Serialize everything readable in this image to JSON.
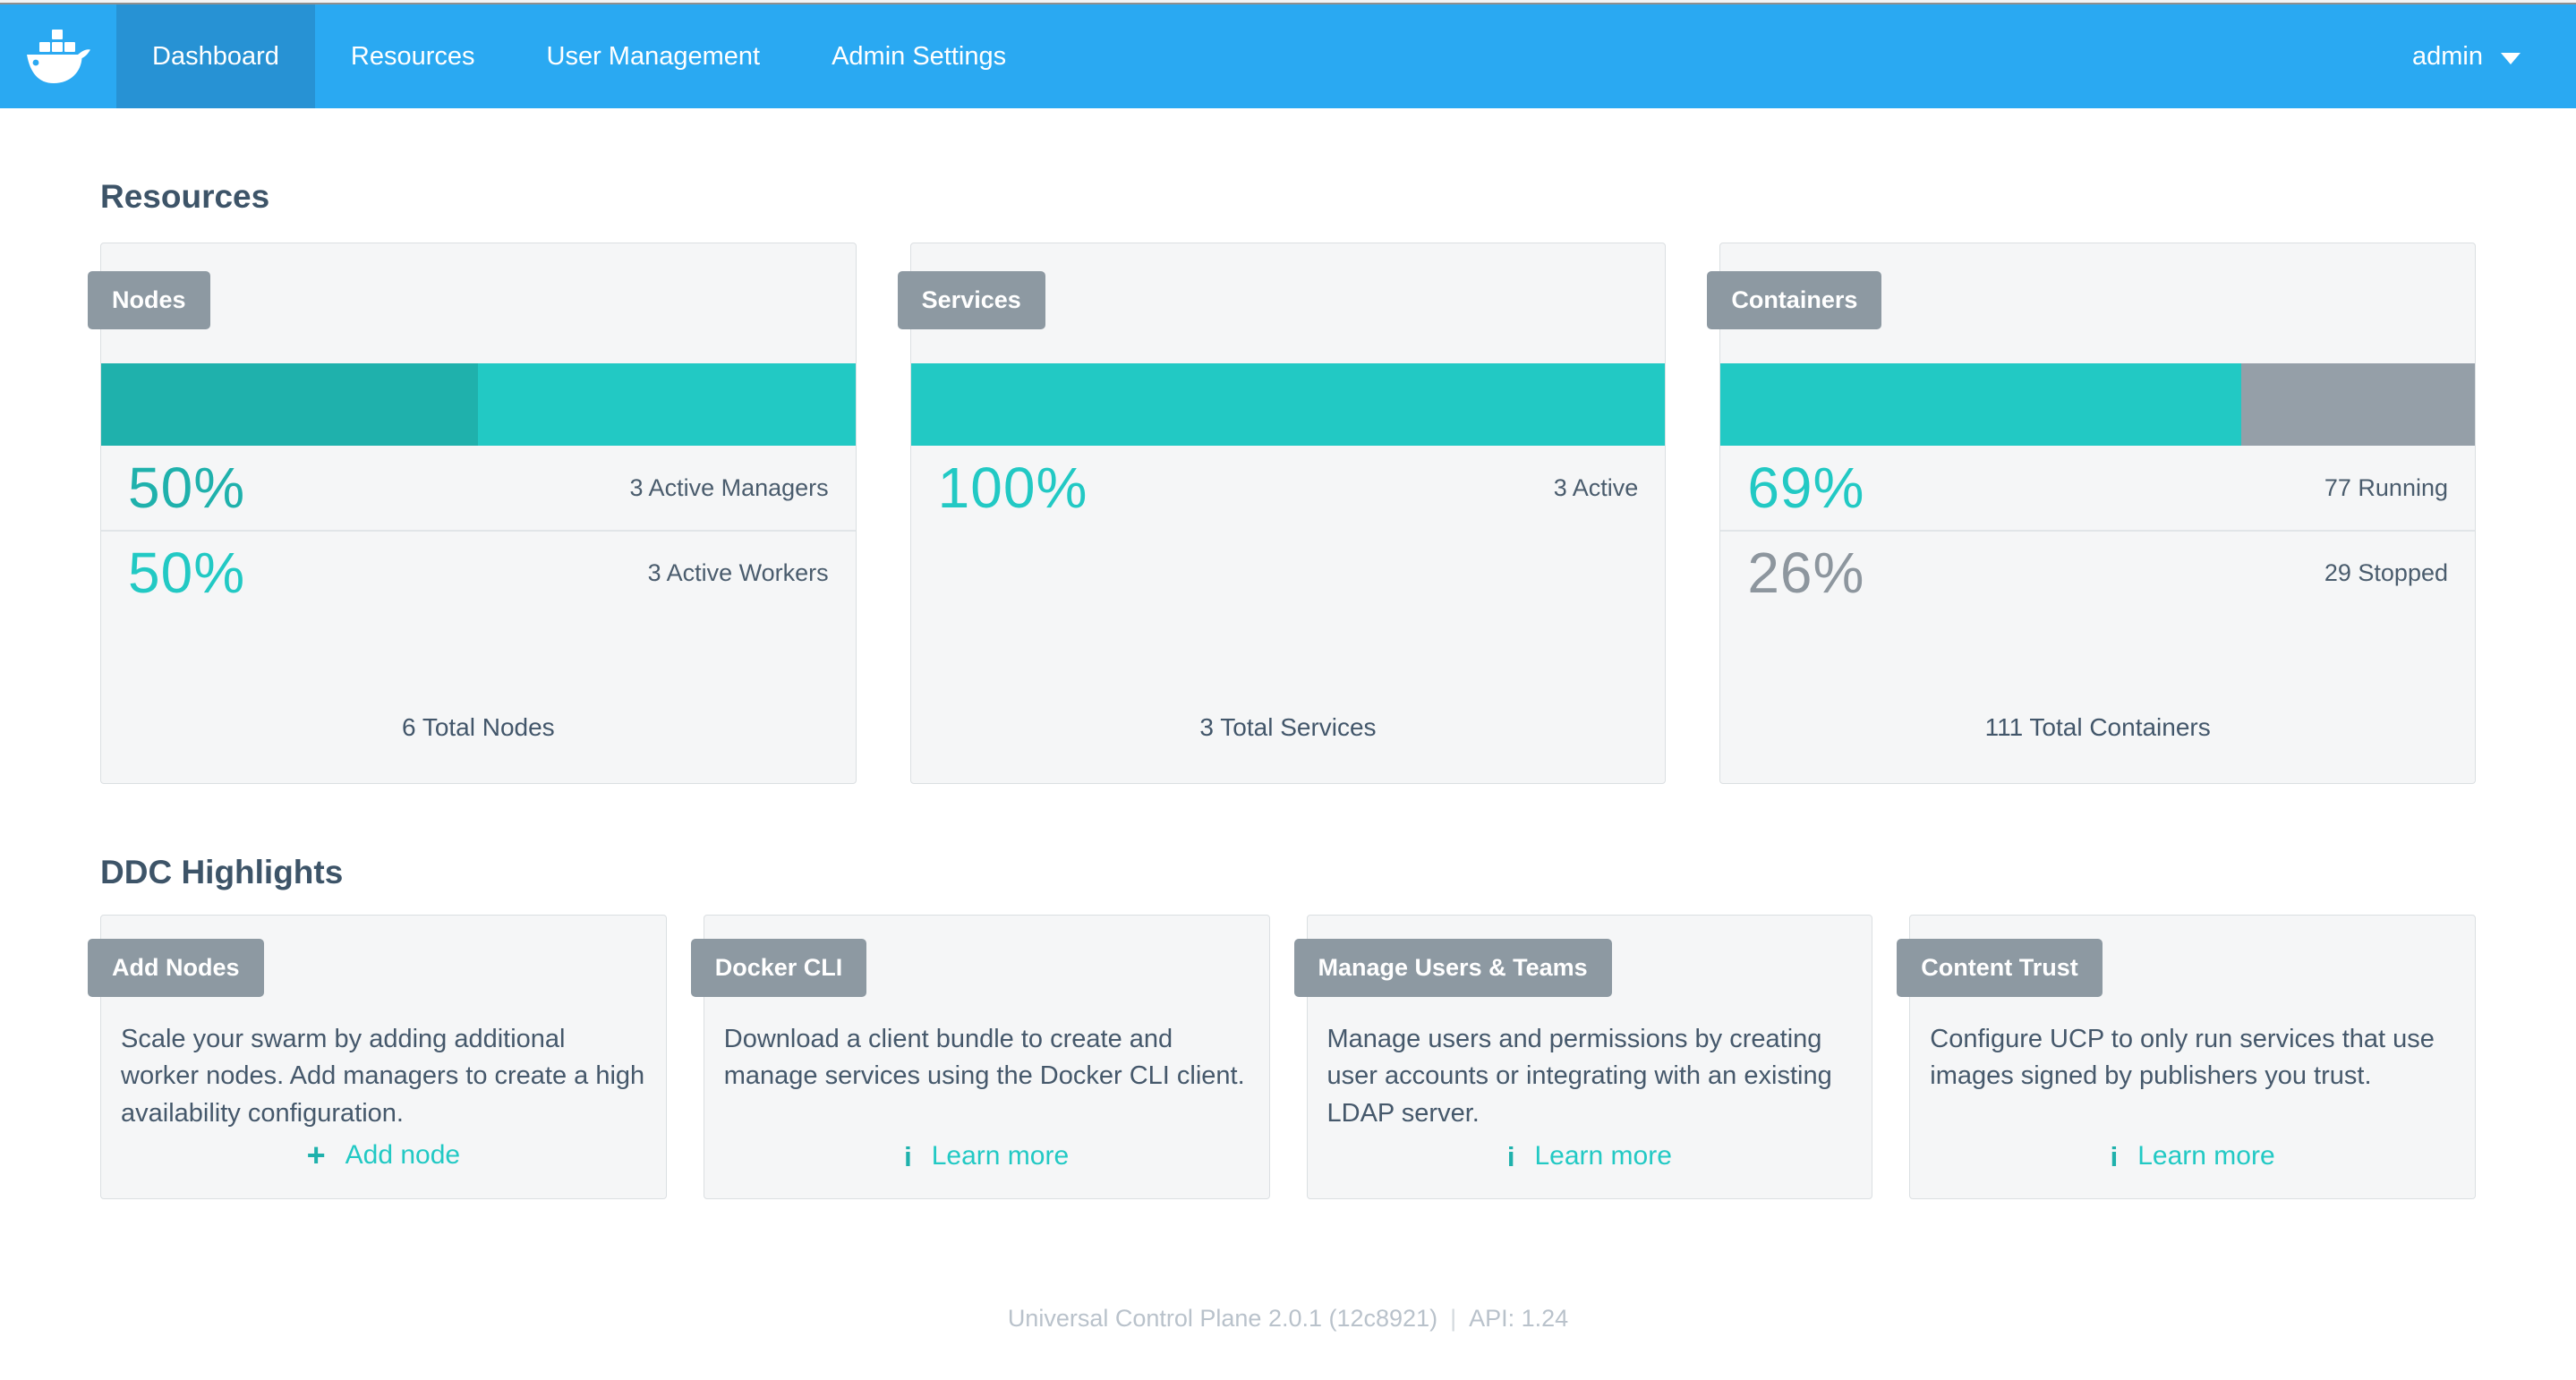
{
  "nav": {
    "logo": "docker-whale",
    "items": [
      {
        "label": "Dashboard",
        "active": true
      },
      {
        "label": "Resources",
        "active": false
      },
      {
        "label": "User Management",
        "active": false
      },
      {
        "label": "Admin Settings",
        "active": false
      }
    ],
    "user": "admin"
  },
  "resources": {
    "heading": "Resources",
    "cards": [
      {
        "label": "Nodes",
        "bar": [
          {
            "percent": 50,
            "color": "dark_teal"
          },
          {
            "percent": 50,
            "color": "teal"
          }
        ],
        "stats": [
          {
            "percent_label": "50%",
            "color": "dark_teal",
            "label": "3 Active Managers"
          },
          {
            "percent_label": "50%",
            "color": "teal",
            "label": "3 Active Workers"
          }
        ],
        "total": "6 Total Nodes"
      },
      {
        "label": "Services",
        "bar": [
          {
            "percent": 100,
            "color": "teal"
          }
        ],
        "stats": [
          {
            "percent_label": "100%",
            "color": "teal",
            "label": "3 Active"
          }
        ],
        "total": "3 Total Services"
      },
      {
        "label": "Containers",
        "bar": [
          {
            "percent": 69,
            "color": "teal"
          },
          {
            "percent": 31,
            "color": "gray"
          }
        ],
        "stats": [
          {
            "percent_label": "69%",
            "color": "teal",
            "label": "77 Running"
          },
          {
            "percent_label": "26%",
            "color": "gray_text",
            "label": "29 Stopped"
          }
        ],
        "total": "111 Total Containers"
      }
    ]
  },
  "highlights": {
    "heading": "DDC Highlights",
    "cards": [
      {
        "label": "Add Nodes",
        "body": "Scale your swarm by adding additional worker nodes. Add managers to create a high availability configuration.",
        "action": {
          "icon": "plus-icon",
          "icon_glyph": "+",
          "label": "Add node"
        }
      },
      {
        "label": "Docker CLI",
        "body": "Download a client bundle to create and manage services using the Docker CLI client.",
        "action": {
          "icon": "info-icon",
          "icon_glyph": "i",
          "label": "Learn more"
        }
      },
      {
        "label": "Manage Users & Teams",
        "body": "Manage users and permissions by creating user accounts or integrating with an existing LDAP server.",
        "action": {
          "icon": "info-icon",
          "icon_glyph": "i",
          "label": "Learn more"
        }
      },
      {
        "label": "Content Trust",
        "body": "Configure UCP to only run services that use images signed by publishers you trust.",
        "action": {
          "icon": "info-icon",
          "icon_glyph": "i",
          "label": "Learn more"
        }
      }
    ]
  },
  "footer": {
    "version": "Universal Control Plane 2.0.1 (12c8921)",
    "separator": "|",
    "api": "API: 1.24"
  },
  "colors": {
    "nav_blue": "#2aa9f2",
    "nav_active_blue": "#2792d4",
    "dark_teal": "#1fb1ac",
    "teal": "#22c9c4",
    "gray": "#959fa8",
    "gray_text": "#8d969e",
    "chip_gray": "#8d99a2",
    "card_bg": "#f5f6f7",
    "card_border": "#dbdfe2",
    "heading_text": "#3d5468",
    "footer_text": "#b9c2cb"
  }
}
